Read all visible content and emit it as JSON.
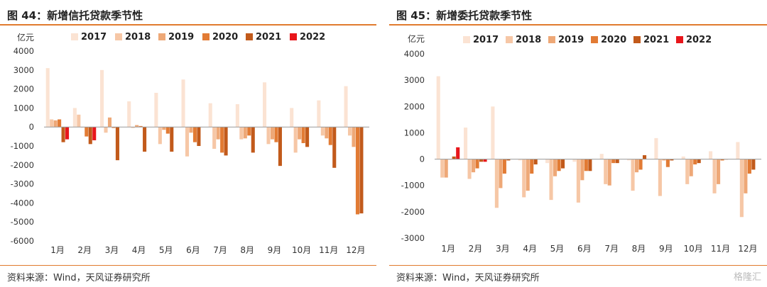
{
  "charts": [
    {
      "title": "图 44：新增信托贷款季节性",
      "source": "资料来源：Wind，天风证券研究所"
    },
    {
      "title": "图 45：新增委托贷款季节性",
      "source": "资料来源：Wind，天风证券研究所"
    }
  ],
  "watermark": "格隆汇",
  "chart_data": [
    {
      "type": "bar",
      "title": "图 44：新增信托贷款季节性",
      "ylabel": "亿元",
      "ylim": [
        -6000,
        4000
      ],
      "yticks": [
        4000,
        3000,
        2000,
        1000,
        0,
        -1000,
        -2000,
        -3000,
        -4000,
        -5000,
        -6000
      ],
      "categories": [
        "1月",
        "2月",
        "3月",
        "4月",
        "5月",
        "6月",
        "7月",
        "8月",
        "9月",
        "10月",
        "11月",
        "12月"
      ],
      "legend": "top",
      "grid": false,
      "series": [
        {
          "name": "2017",
          "color": "#fbe3d3",
          "values": [
            3100,
            1000,
            3000,
            1350,
            1800,
            2500,
            1250,
            1200,
            2350,
            1000,
            1400,
            2150
          ]
        },
        {
          "name": "2018",
          "color": "#f6c7a6",
          "values": [
            400,
            650,
            -300,
            -50,
            -900,
            -1550,
            -1150,
            -650,
            -900,
            -1350,
            -450,
            -450
          ]
        },
        {
          "name": "2019",
          "color": "#eea877",
          "values": [
            350,
            0,
            500,
            100,
            -150,
            -300,
            -650,
            -600,
            -650,
            -650,
            -600,
            -1050
          ]
        },
        {
          "name": "2020",
          "color": "#e27b34",
          "values": [
            400,
            -500,
            -50,
            50,
            -350,
            -800,
            -1350,
            -450,
            -800,
            -850,
            -950,
            -4600
          ]
        },
        {
          "name": "2021",
          "color": "#c25a1b",
          "values": [
            -800,
            -900,
            -1750,
            -1300,
            -1300,
            -1000,
            -1500,
            -1350,
            -2050,
            -1050,
            -2150,
            -4550
          ]
        },
        {
          "name": "2022",
          "color": "#e8161b",
          "values": [
            -650,
            -700,
            null,
            null,
            null,
            null,
            null,
            null,
            null,
            null,
            null,
            null
          ]
        }
      ]
    },
    {
      "type": "bar",
      "title": "图 45：新增委托贷款季节性",
      "ylabel": "亿元",
      "ylim": [
        -3000,
        4000
      ],
      "yticks": [
        4000,
        3000,
        2000,
        1000,
        0,
        -1000,
        -2000,
        -3000
      ],
      "categories": [
        "1月",
        "2月",
        "3月",
        "4月",
        "5月",
        "6月",
        "7月",
        "8月",
        "9月",
        "10月",
        "11月",
        "12月"
      ],
      "legend": "top",
      "grid": false,
      "series": [
        {
          "name": "2017",
          "color": "#fbe3d3",
          "values": [
            3150,
            1200,
            2000,
            -50,
            -150,
            -100,
            200,
            -50,
            800,
            100,
            300,
            650
          ]
        },
        {
          "name": "2018",
          "color": "#f6c7a6",
          "values": [
            -700,
            -750,
            -1850,
            -1450,
            -1550,
            -1650,
            -950,
            -1200,
            -1400,
            -950,
            -1300,
            -2200
          ]
        },
        {
          "name": "2019",
          "color": "#eea877",
          "values": [
            -700,
            -500,
            -1100,
            -1200,
            -650,
            -800,
            -1000,
            -500,
            -50,
            -650,
            -950,
            -1300
          ]
        },
        {
          "name": "2020",
          "color": "#e27b34",
          "values": [
            0,
            -350,
            -550,
            -550,
            -450,
            -450,
            -150,
            -400,
            -300,
            -200,
            -50,
            -550
          ]
        },
        {
          "name": "2021",
          "color": "#c25a1b",
          "values": [
            100,
            -100,
            -50,
            -200,
            -350,
            -450,
            -150,
            150,
            -50,
            -150,
            0,
            -400
          ]
        },
        {
          "name": "2022",
          "color": "#e8161b",
          "values": [
            450,
            -100,
            null,
            null,
            null,
            null,
            null,
            null,
            null,
            null,
            null,
            null
          ]
        }
      ]
    }
  ]
}
